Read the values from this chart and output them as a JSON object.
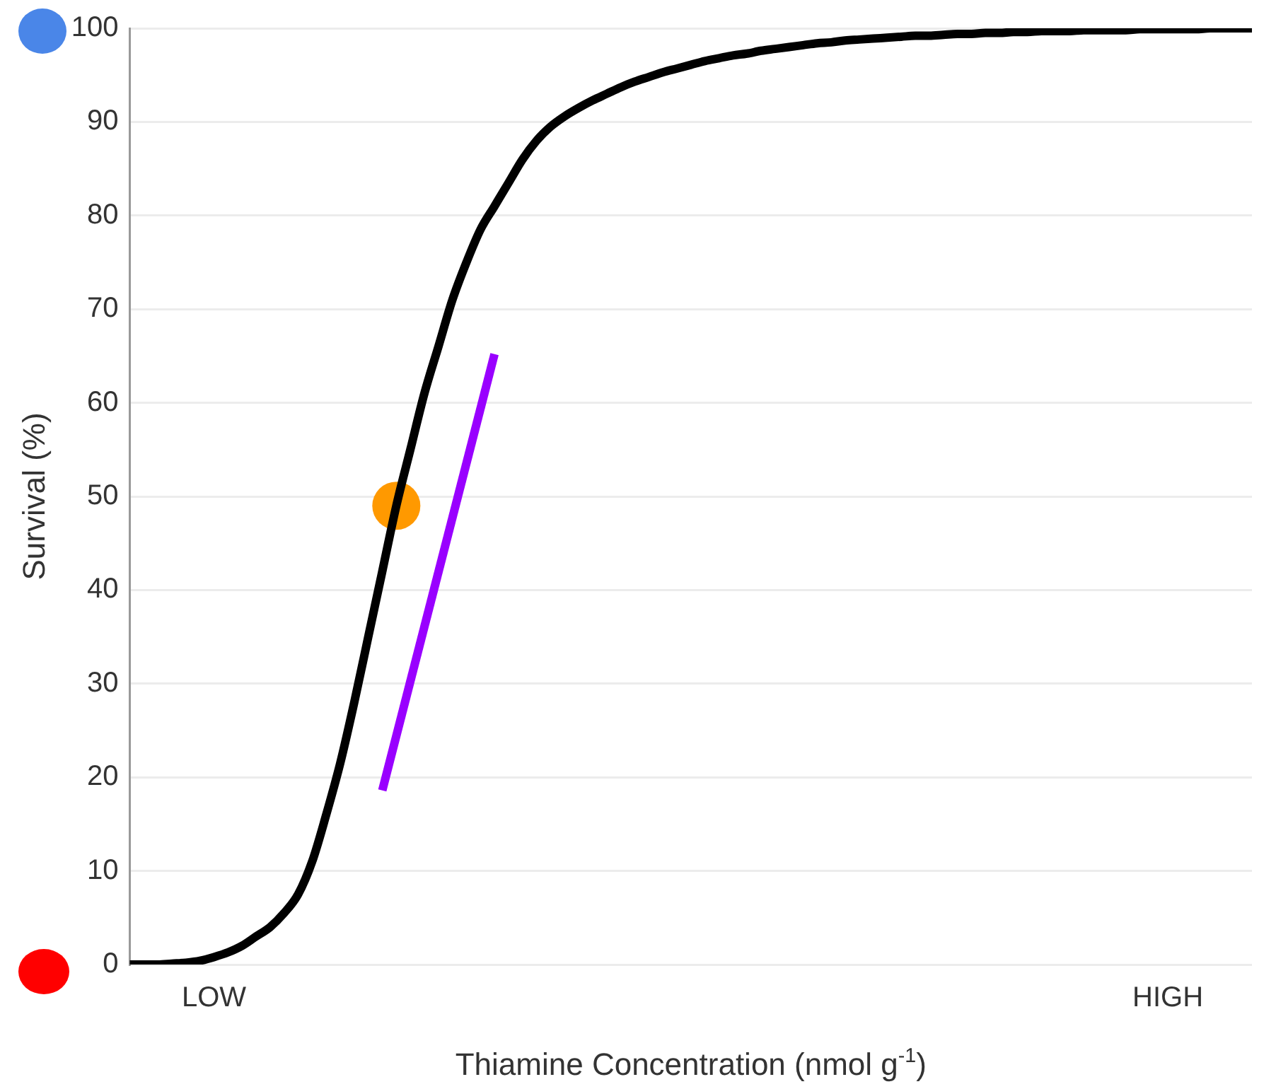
{
  "chart_data": {
    "type": "line",
    "ylabel": "Survival (%)",
    "xlabel": "Thiamine Concentration (nmol g$^{-1}$)",
    "categories": [
      null,
      null,
      null,
      null,
      null,
      null,
      "LOW",
      null,
      null,
      null,
      null,
      null,
      null,
      null,
      null,
      null,
      null,
      null,
      null,
      null,
      null,
      null,
      null,
      null,
      null,
      null,
      null,
      null,
      null,
      null,
      null,
      null,
      null,
      null,
      null,
      null,
      null,
      null,
      null,
      null,
      null,
      null,
      null,
      null,
      null,
      null,
      null,
      null,
      null,
      null,
      null,
      null,
      null,
      null,
      null,
      null,
      null,
      null,
      null,
      null,
      null,
      null,
      null,
      null,
      null,
      null,
      null,
      null,
      null,
      null,
      null,
      null,
      null,
      null,
      "HIGH",
      null,
      null,
      null,
      null,
      null,
      null
    ],
    "ylim": [
      0,
      100
    ],
    "yticks": [
      0,
      10,
      20,
      30,
      40,
      50,
      60,
      70,
      80,
      90,
      100
    ],
    "grid": "y",
    "marker": "none",
    "line_style": "solid",
    "series": [
      {
        "color": "#000000",
        "values": [
          0,
          0,
          0,
          0.1,
          0.2,
          0.4,
          0.8,
          1.3,
          2,
          3,
          4,
          5.5,
          7.5,
          11,
          16,
          21.5,
          28,
          35,
          42,
          49,
          55,
          61,
          66,
          71,
          75,
          78.5,
          81,
          83.5,
          86,
          88,
          89.5,
          90.6,
          91.5,
          92.3,
          93,
          93.7,
          94.3,
          94.8,
          95.3,
          95.7,
          96.1,
          96.5,
          96.8,
          97.1,
          97.3,
          97.6,
          97.8,
          98,
          98.2,
          98.4,
          98.5,
          98.7,
          98.8,
          98.9,
          99,
          99.1,
          99.2,
          99.2,
          99.3,
          99.4,
          99.4,
          99.5,
          99.5,
          99.6,
          99.6,
          99.7,
          99.7,
          99.7,
          99.8,
          99.8,
          99.8,
          99.8,
          99.9,
          99.9,
          99.9,
          99.9,
          99.9,
          100,
          100,
          100,
          100
        ]
      },
      {
        "type": "line",
        "color": "#9900ff",
        "values": [
          null,
          null,
          null,
          null,
          null,
          null,
          null,
          null,
          null,
          null,
          null,
          null,
          null,
          null,
          null,
          null,
          null,
          null,
          18.6,
          null,
          null,
          null,
          null,
          null,
          null,
          null,
          65.2,
          null,
          null,
          null,
          null,
          null,
          null,
          null,
          null,
          null,
          null,
          null,
          null,
          null,
          null,
          null,
          null,
          null,
          null,
          null,
          null,
          null,
          null,
          null,
          null,
          null,
          null,
          null,
          null,
          null,
          null,
          null,
          null,
          null,
          null,
          null,
          null,
          null,
          null,
          null,
          null,
          null,
          null,
          null,
          null,
          null,
          null,
          null,
          null,
          null,
          null,
          null,
          null,
          null,
          null
        ]
      },
      {
        "type": "scatter",
        "color": "#ff9900",
        "marker": "circle",
        "values": [
          null,
          null,
          null,
          null,
          null,
          null,
          null,
          null,
          null,
          null,
          null,
          null,
          null,
          null,
          null,
          null,
          null,
          null,
          null,
          49,
          null,
          null,
          null,
          null,
          null,
          null,
          null,
          null,
          null,
          null,
          null,
          null,
          null,
          null,
          null,
          null,
          null,
          null,
          null,
          null,
          null,
          null,
          null,
          null,
          null,
          null,
          null,
          null,
          null,
          null,
          null,
          null,
          null,
          null,
          null,
          null,
          null,
          null,
          null,
          null,
          null,
          null,
          null,
          null,
          null,
          null,
          null,
          null,
          null,
          null,
          null,
          null,
          null,
          null,
          null,
          null,
          null,
          null,
          null,
          null,
          null
        ]
      }
    ]
  }
}
